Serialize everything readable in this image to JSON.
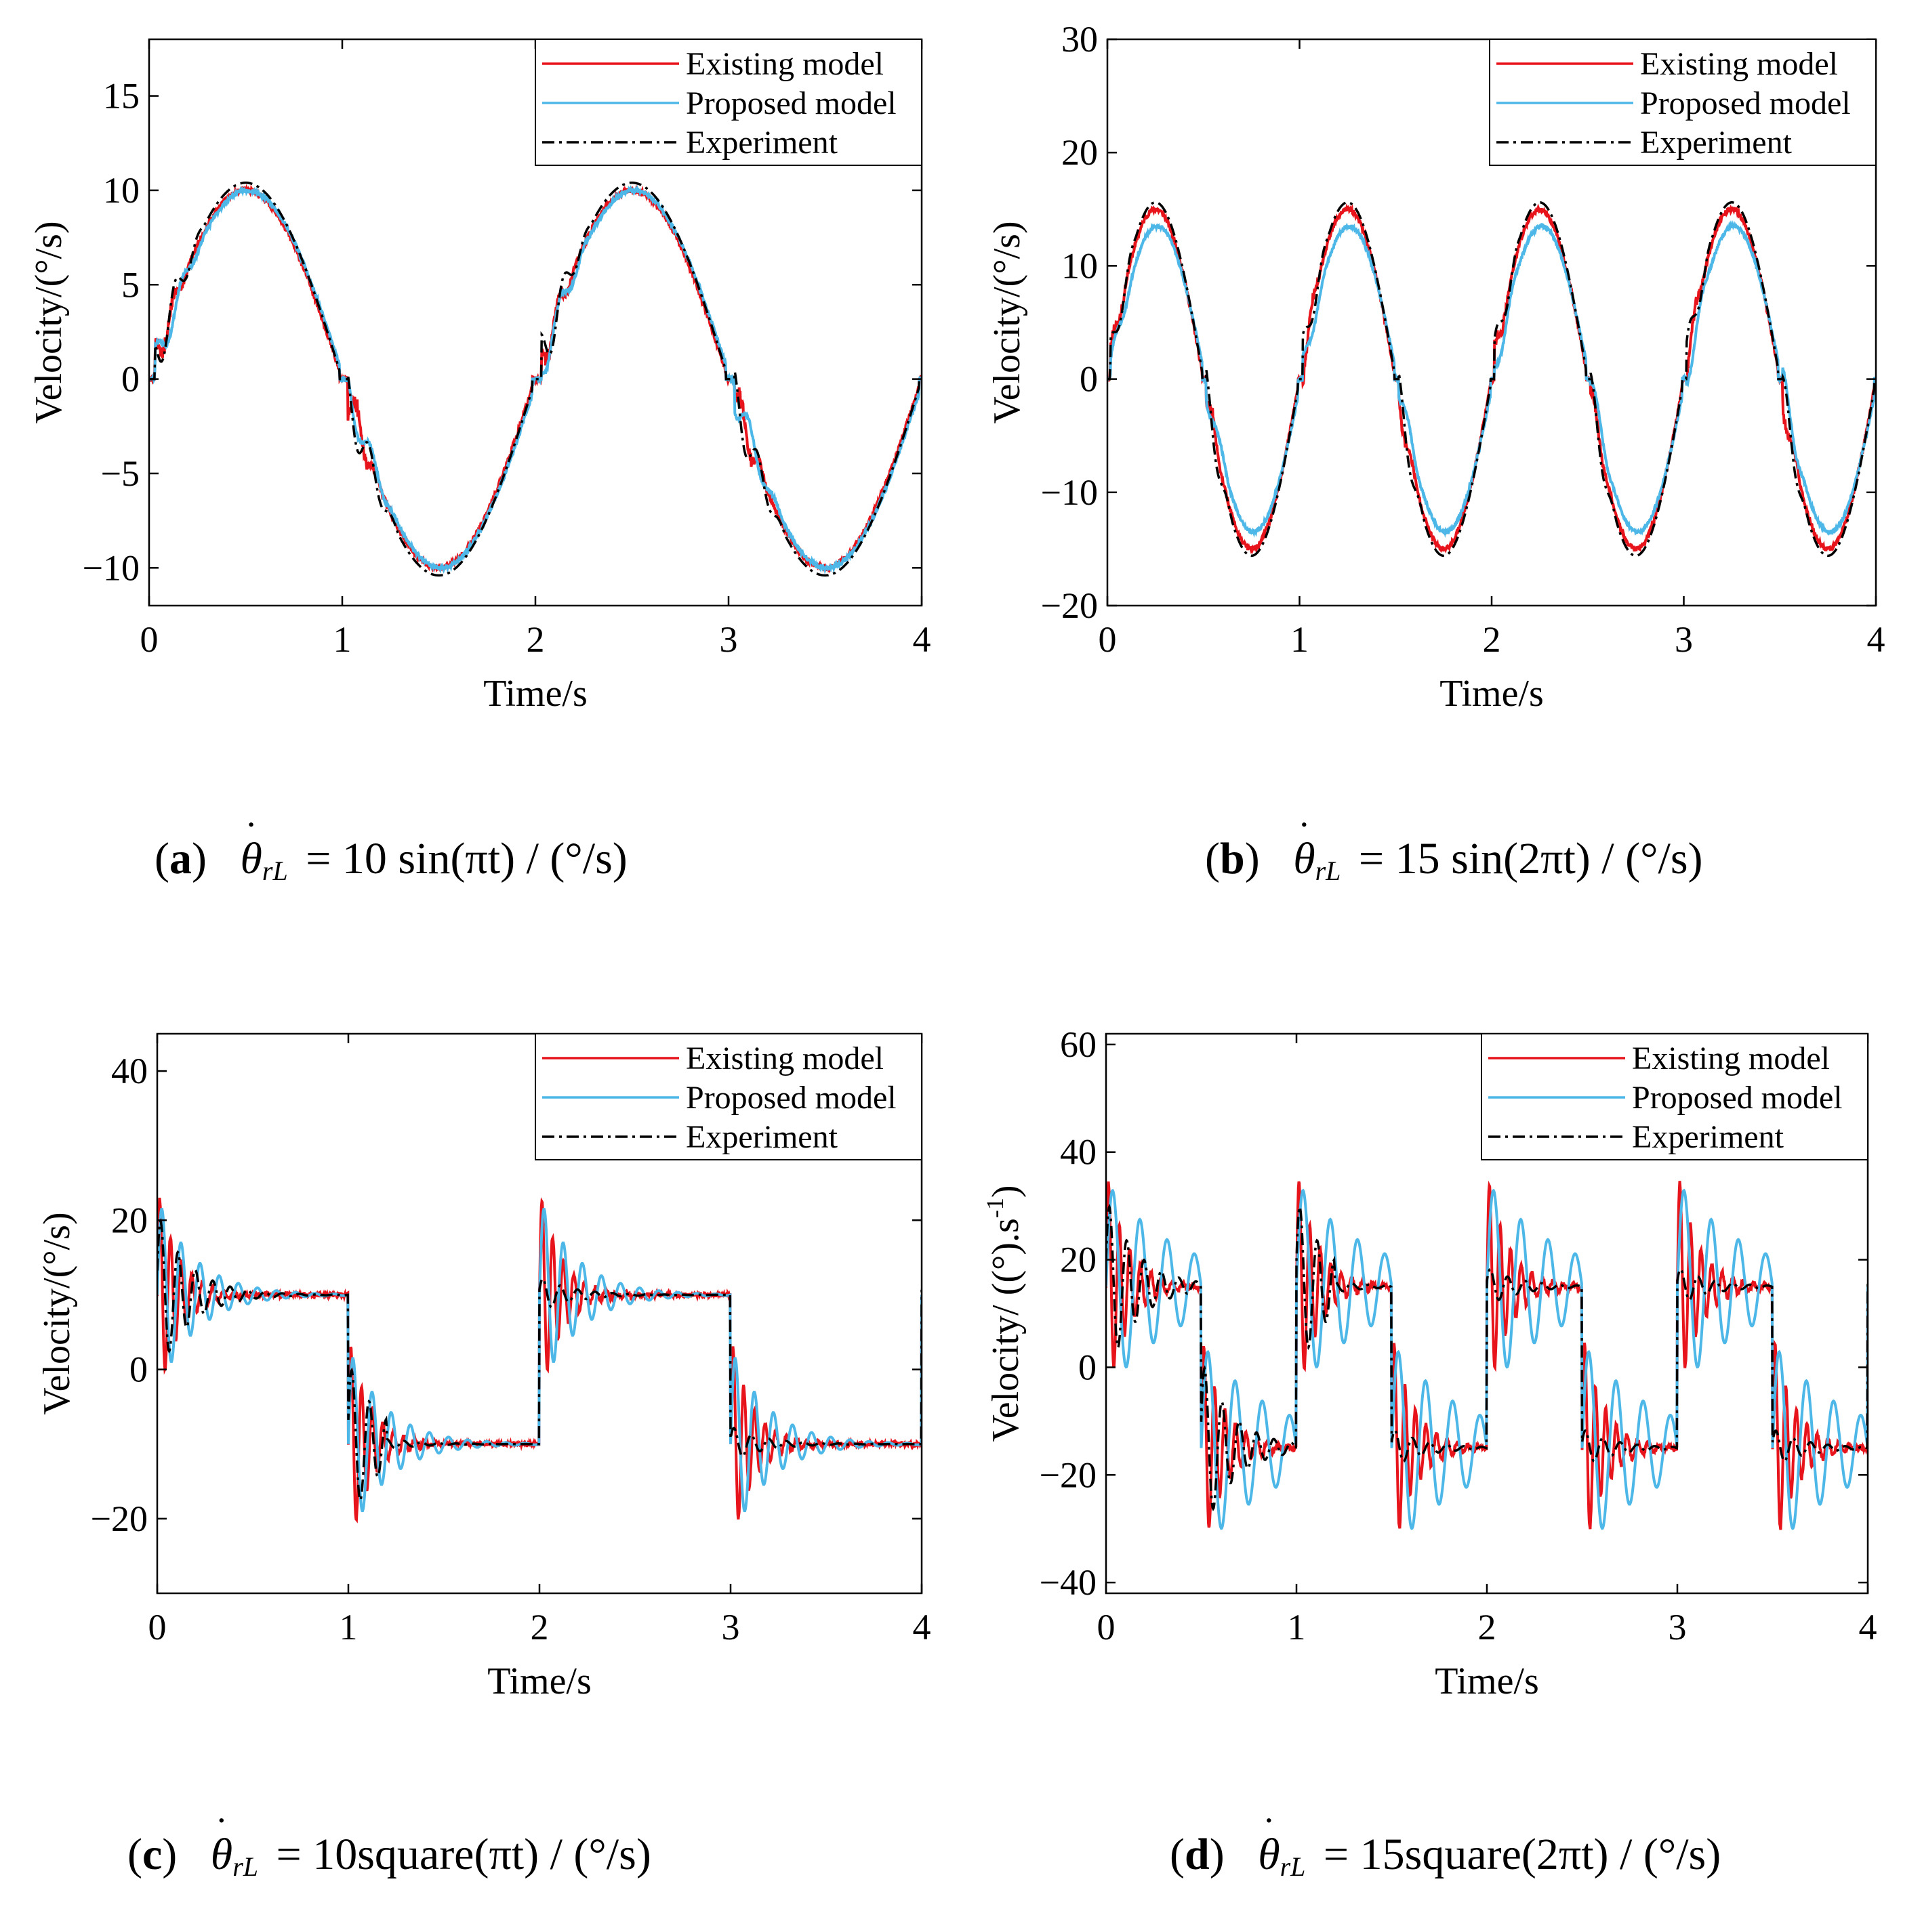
{
  "figure": {
    "captions": [
      {
        "label": "a",
        "symbol": "θ",
        "subscript": "rL",
        "equation": "= 10 sin(πt) / (°/s)"
      },
      {
        "label": "b",
        "symbol": "θ",
        "subscript": "rL",
        "equation": "= 15 sin(2πt) / (°/s)"
      },
      {
        "label": "c",
        "symbol": "θ",
        "subscript": "rL",
        "equation": "= 10square(πt) / (°/s)"
      },
      {
        "label": "d",
        "symbol": "θ",
        "subscript": "rL",
        "equation": "= 15square(2πt) / (°/s)"
      }
    ]
  },
  "chart_data": [
    {
      "id": "a",
      "type": "line",
      "signal": "sine",
      "amplitude": 10,
      "frequency_hz": 0.5,
      "xlabel": "Time/s",
      "ylabel": "Velocity/(°/s)",
      "xlim": [
        0,
        4
      ],
      "ylim": [
        -12,
        18
      ],
      "xticks": [
        0,
        1,
        2,
        3,
        4
      ],
      "yticks": [
        -10,
        -5,
        0,
        5,
        10,
        15
      ],
      "ytick_labels": [
        "−10",
        "−5",
        "0",
        "5",
        "10",
        "15"
      ],
      "legend_position": "top-right",
      "series": [
        {
          "name": "Existing model",
          "color": "#e8141c",
          "style": "solid"
        },
        {
          "name": "Proposed model",
          "color": "#4db8e8",
          "style": "solid"
        },
        {
          "name": "Experiment",
          "color": "#000000",
          "style": "dash-dot"
        }
      ]
    },
    {
      "id": "b",
      "type": "line",
      "signal": "sine",
      "amplitude": 15,
      "frequency_hz": 1,
      "xlabel": "Time/s",
      "ylabel": "Velocity/(°/s)",
      "xlim": [
        0,
        4
      ],
      "ylim": [
        -20,
        30
      ],
      "xticks": [
        0,
        1,
        2,
        3,
        4
      ],
      "yticks": [
        -20,
        -10,
        0,
        10,
        20,
        30
      ],
      "ytick_labels": [
        "−20",
        "−10",
        "0",
        "10",
        "20",
        "30"
      ],
      "legend_position": "top-right",
      "series": [
        {
          "name": "Existing model",
          "color": "#e8141c",
          "style": "solid"
        },
        {
          "name": "Proposed model",
          "color": "#4db8e8",
          "style": "solid"
        },
        {
          "name": "Experiment",
          "color": "#000000",
          "style": "dash-dot"
        }
      ]
    },
    {
      "id": "c",
      "type": "line",
      "signal": "square",
      "amplitude": 10,
      "frequency_hz": 0.5,
      "xlabel": "Time/s",
      "ylabel": "Velocity/(°/s)",
      "xlim": [
        0,
        4
      ],
      "ylim": [
        -30,
        45
      ],
      "xticks": [
        0,
        1,
        2,
        3,
        4
      ],
      "yticks": [
        -20,
        0,
        20,
        40
      ],
      "ytick_labels": [
        "−20",
        "0",
        "20",
        "40"
      ],
      "legend_position": "top-right",
      "series": [
        {
          "name": "Existing model",
          "color": "#e8141c",
          "style": "solid"
        },
        {
          "name": "Proposed model",
          "color": "#4db8e8",
          "style": "solid"
        },
        {
          "name": "Experiment",
          "color": "#000000",
          "style": "dash-dot"
        }
      ]
    },
    {
      "id": "d",
      "type": "line",
      "signal": "square",
      "amplitude": 15,
      "frequency_hz": 1,
      "xlabel": "Time/s",
      "ylabel": "Velocity/ ((°).s-1)",
      "ylabel_main": "Velocity/ ((°).s",
      "ylabel_sup": "-1",
      "ylabel_close": ")",
      "xlim": [
        0,
        4
      ],
      "ylim": [
        -42,
        62
      ],
      "xticks": [
        0,
        1,
        2,
        3,
        4
      ],
      "yticks": [
        -40,
        -20,
        0,
        20,
        40,
        60
      ],
      "ytick_labels": [
        "−40",
        "−20",
        "0",
        "20",
        "40",
        "60"
      ],
      "legend_position": "top-right",
      "series": [
        {
          "name": "Existing model",
          "color": "#e8141c",
          "style": "solid"
        },
        {
          "name": "Proposed model",
          "color": "#4db8e8",
          "style": "solid"
        },
        {
          "name": "Experiment",
          "color": "#000000",
          "style": "dash-dot"
        }
      ]
    }
  ]
}
